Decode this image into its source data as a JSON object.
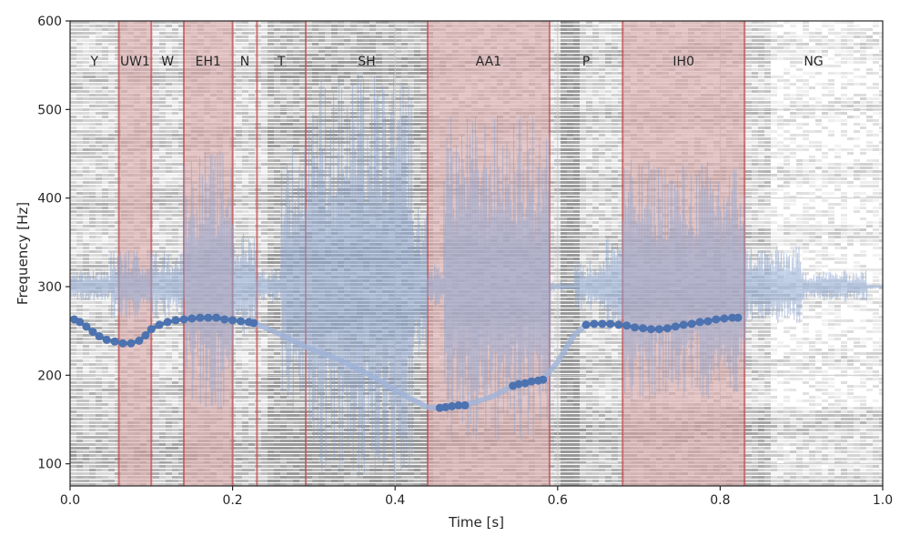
{
  "chart_data": {
    "type": "line",
    "title": "",
    "xlabel": "Time [s]",
    "ylabel": "Frequency [Hz]",
    "xlim": [
      0.0,
      1.0
    ],
    "ylim": [
      75,
      600
    ],
    "xticks": [
      0.0,
      0.2,
      0.4,
      0.6,
      0.8,
      1.0
    ],
    "xtick_labels": [
      "0.0",
      "0.2",
      "0.4",
      "0.6",
      "0.8",
      "1.0"
    ],
    "yticks": [
      100,
      200,
      300,
      400,
      500,
      600
    ],
    "ytick_labels": [
      "100",
      "200",
      "300",
      "400",
      "500",
      "600"
    ],
    "grid": true,
    "legend": "none",
    "layers": [
      "spectrogram (grayscale)",
      "waveform (light blue, centered at 300 Hz)",
      "phoneme intervals (red)",
      "pitch contour (blue)"
    ],
    "colors": {
      "phoneme_fill": "#d9a3a3",
      "phoneme_edge": "#c44e52",
      "pitch_points": "#4c72b0",
      "pitch_interp": "#9fb3d8",
      "waveform": "#8da6d1",
      "grid": "#cccccc"
    },
    "phonemes": [
      {
        "label": "Y",
        "start": 0.0,
        "end": 0.06,
        "highlight": false
      },
      {
        "label": "UW1",
        "start": 0.06,
        "end": 0.1,
        "highlight": true
      },
      {
        "label": "W",
        "start": 0.1,
        "end": 0.14,
        "highlight": false
      },
      {
        "label": "EH1",
        "start": 0.14,
        "end": 0.2,
        "highlight": true
      },
      {
        "label": "N",
        "start": 0.2,
        "end": 0.23,
        "highlight": false
      },
      {
        "label": "T",
        "start": 0.23,
        "end": 0.29,
        "highlight": false
      },
      {
        "label": "SH",
        "start": 0.29,
        "end": 0.44,
        "highlight": false
      },
      {
        "label": "AA1",
        "start": 0.44,
        "end": 0.59,
        "highlight": true
      },
      {
        "label": "P",
        "start": 0.59,
        "end": 0.68,
        "highlight": false
      },
      {
        "label": "IH0",
        "start": 0.68,
        "end": 0.83,
        "highlight": true
      },
      {
        "label": "NG",
        "start": 0.83,
        "end": 1.0,
        "highlight": false
      }
    ],
    "phoneme_boundaries": [
      0.06,
      0.1,
      0.14,
      0.2,
      0.23,
      0.29,
      0.44,
      0.59,
      0.68,
      0.83
    ],
    "pitch_voiced": [
      [
        [
          0.005,
          263
        ],
        [
          0.012,
          260
        ],
        [
          0.02,
          255
        ],
        [
          0.028,
          249
        ],
        [
          0.036,
          244
        ],
        [
          0.045,
          240
        ],
        [
          0.055,
          238
        ],
        [
          0.065,
          236
        ],
        [
          0.075,
          236
        ],
        [
          0.085,
          239
        ],
        [
          0.093,
          245
        ],
        [
          0.1,
          252
        ],
        [
          0.11,
          257
        ],
        [
          0.12,
          260
        ],
        [
          0.13,
          262
        ],
        [
          0.14,
          263
        ],
        [
          0.15,
          264
        ],
        [
          0.16,
          265
        ],
        [
          0.17,
          265
        ],
        [
          0.18,
          265
        ],
        [
          0.19,
          263
        ],
        [
          0.2,
          262
        ],
        [
          0.21,
          261
        ],
        [
          0.22,
          260
        ],
        [
          0.226,
          259
        ]
      ],
      [
        [
          0.455,
          163
        ],
        [
          0.462,
          164
        ],
        [
          0.47,
          165
        ],
        [
          0.478,
          166
        ],
        [
          0.486,
          166
        ]
      ],
      [
        [
          0.545,
          188
        ],
        [
          0.552,
          190
        ],
        [
          0.56,
          191
        ],
        [
          0.568,
          193
        ],
        [
          0.576,
          194
        ],
        [
          0.582,
          195
        ]
      ],
      [
        [
          0.635,
          257
        ],
        [
          0.645,
          258
        ],
        [
          0.655,
          258
        ],
        [
          0.665,
          258
        ],
        [
          0.675,
          257
        ],
        [
          0.685,
          256
        ],
        [
          0.695,
          254
        ],
        [
          0.705,
          253
        ],
        [
          0.715,
          252
        ],
        [
          0.725,
          252
        ],
        [
          0.735,
          253
        ],
        [
          0.745,
          255
        ],
        [
          0.755,
          257
        ],
        [
          0.765,
          258
        ],
        [
          0.775,
          260
        ],
        [
          0.785,
          261
        ],
        [
          0.795,
          263
        ],
        [
          0.805,
          264
        ],
        [
          0.815,
          265
        ],
        [
          0.822,
          265
        ]
      ]
    ],
    "pitch_interpolated": [
      [
        0.226,
        259
      ],
      [
        0.25,
        250
      ],
      [
        0.29,
        232
      ],
      [
        0.33,
        218
      ],
      [
        0.37,
        200
      ],
      [
        0.4,
        183
      ],
      [
        0.42,
        173
      ],
      [
        0.44,
        164
      ],
      [
        0.455,
        163
      ],
      [
        0.486,
        166
      ],
      [
        0.52,
        176
      ],
      [
        0.545,
        188
      ],
      [
        0.582,
        195
      ],
      [
        0.6,
        215
      ],
      [
        0.62,
        245
      ],
      [
        0.635,
        257
      ]
    ],
    "waveform_baseline_hz": 300
  }
}
